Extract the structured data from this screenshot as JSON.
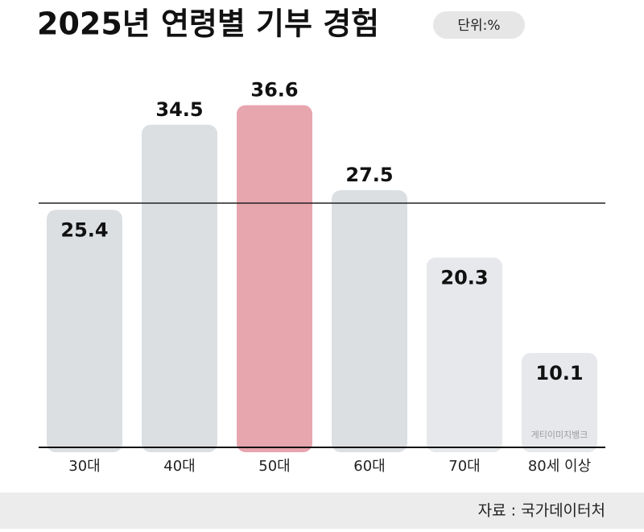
{
  "chart_data": {
    "type": "bar",
    "title": "2025년 연령별 기부 경험",
    "unit": "단위:%",
    "categories": [
      "30대",
      "40대",
      "50대",
      "60대",
      "70대",
      "80세 이상"
    ],
    "values": [
      25.4,
      34.5,
      36.6,
      27.5,
      20.3,
      10.1
    ],
    "colors": [
      "#dcdfe2",
      "#dcdfe2",
      "#e7a5ad",
      "#dcdfe2",
      "#e6e8eb",
      "#e6e8eb"
    ],
    "ylim": [
      0,
      40
    ],
    "source": "자료 : 국가데이터처",
    "credit": "게티이미지뱅크"
  }
}
